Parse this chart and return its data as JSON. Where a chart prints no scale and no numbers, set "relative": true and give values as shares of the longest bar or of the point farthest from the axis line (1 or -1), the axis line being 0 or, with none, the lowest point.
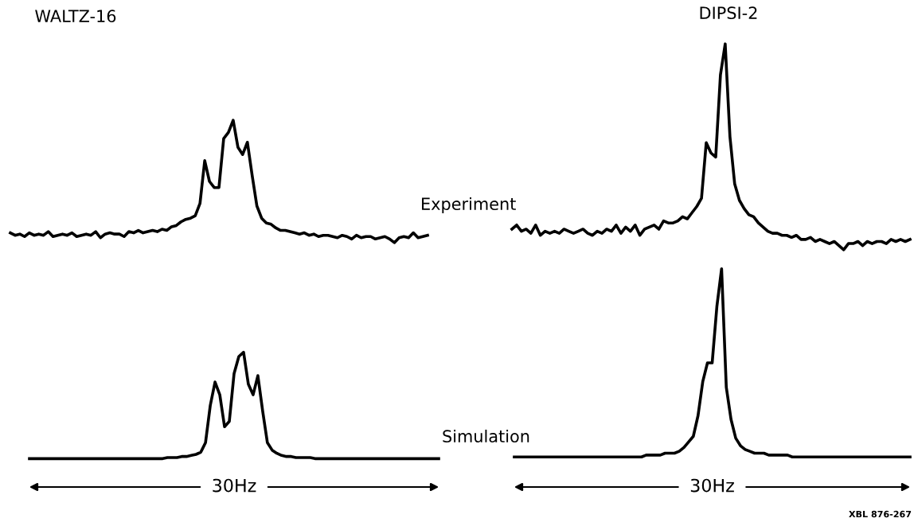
{
  "chart_data": [
    {
      "type": "line",
      "title": "WALTZ-16",
      "relative": true,
      "line_style": "solid",
      "categories": [
        null,
        null,
        null,
        null,
        null,
        null,
        null,
        null,
        null,
        null,
        null,
        null,
        null,
        null,
        null,
        null,
        null,
        null,
        null,
        null,
        null,
        null,
        null,
        null,
        null,
        null,
        null,
        null,
        null,
        null,
        null,
        null,
        null,
        null,
        null,
        null,
        null,
        null,
        null,
        null,
        null,
        null,
        null,
        null,
        null,
        null,
        null,
        null,
        null,
        null,
        null,
        null,
        null,
        null,
        null,
        null,
        null,
        null,
        null,
        null,
        null,
        null,
        null,
        null,
        null,
        null,
        null,
        null,
        null,
        null,
        null,
        null,
        null,
        null,
        null,
        null,
        null,
        null,
        null,
        null,
        null,
        null,
        null,
        null,
        null,
        null,
        null,
        null,
        null
      ],
      "series": [
        {
          "color": "#000000",
          "values": [
            0.08,
            0.06,
            0.07,
            0.05,
            0.08,
            0.06,
            0.07,
            0.06,
            0.09,
            0.05,
            0.06,
            0.07,
            0.06,
            0.08,
            0.05,
            0.06,
            0.07,
            0.06,
            0.09,
            0.04,
            0.07,
            0.08,
            0.07,
            0.07,
            0.05,
            0.09,
            0.08,
            0.1,
            0.08,
            0.09,
            0.1,
            0.09,
            0.11,
            0.1,
            0.13,
            0.14,
            0.17,
            0.19,
            0.2,
            0.22,
            0.32,
            0.67,
            0.5,
            0.45,
            0.45,
            0.85,
            0.9,
            1.0,
            0.78,
            0.72,
            0.82,
            0.55,
            0.3,
            0.2,
            0.16,
            0.15,
            0.12,
            0.1,
            0.1,
            0.09,
            0.08,
            0.07,
            0.08,
            0.06,
            0.07,
            0.05,
            0.06,
            0.06,
            0.05,
            0.04,
            0.06,
            0.05,
            0.03,
            0.06,
            0.04,
            0.05,
            0.05,
            0.03,
            0.04,
            0.05,
            0.03,
            0.0,
            0.04,
            0.05,
            0.04,
            0.08,
            0.04,
            0.05,
            0.06
          ]
        }
      ]
    },
    {
      "type": "line",
      "title": "DIPSI-2",
      "relative": true,
      "line_style": "solid",
      "annotations": [
        "Experiment"
      ],
      "categories": [
        null,
        null,
        null,
        null,
        null,
        null,
        null,
        null,
        null,
        null,
        null,
        null,
        null,
        null,
        null,
        null,
        null,
        null,
        null,
        null,
        null,
        null,
        null,
        null,
        null,
        null,
        null,
        null,
        null,
        null,
        null,
        null,
        null,
        null,
        null,
        null,
        null,
        null,
        null,
        null,
        null,
        null,
        null,
        null,
        null,
        null,
        null,
        null,
        null,
        null,
        null,
        null,
        null,
        null,
        null,
        null,
        null,
        null,
        null,
        null,
        null,
        null,
        null,
        null,
        null,
        null,
        null,
        null,
        null,
        null,
        null,
        null,
        null,
        null,
        null,
        null,
        null,
        null,
        null,
        null,
        null,
        null,
        null,
        null,
        null
      ],
      "series": [
        {
          "color": "#000000",
          "values": [
            0.1,
            0.12,
            0.09,
            0.1,
            0.08,
            0.12,
            0.07,
            0.09,
            0.08,
            0.09,
            0.08,
            0.1,
            0.09,
            0.08,
            0.09,
            0.1,
            0.08,
            0.07,
            0.09,
            0.08,
            0.1,
            0.09,
            0.12,
            0.08,
            0.11,
            0.09,
            0.12,
            0.07,
            0.1,
            0.11,
            0.12,
            0.1,
            0.14,
            0.13,
            0.13,
            0.14,
            0.16,
            0.15,
            0.18,
            0.21,
            0.25,
            0.52,
            0.47,
            0.45,
            0.85,
            1.0,
            0.55,
            0.32,
            0.24,
            0.2,
            0.17,
            0.16,
            0.13,
            0.11,
            0.09,
            0.08,
            0.08,
            0.07,
            0.07,
            0.06,
            0.07,
            0.05,
            0.05,
            0.06,
            0.04,
            0.05,
            0.04,
            0.03,
            0.04,
            0.02,
            0.0,
            0.03,
            0.03,
            0.04,
            0.02,
            0.04,
            0.03,
            0.04,
            0.04,
            0.03,
            0.05,
            0.04,
            0.05,
            0.04,
            0.05
          ]
        }
      ]
    },
    {
      "type": "line",
      "xlabel": "30Hz",
      "relative": true,
      "line_style": "solid",
      "categories": [
        null,
        null,
        null,
        null,
        null,
        null,
        null,
        null,
        null,
        null,
        null,
        null,
        null,
        null,
        null,
        null,
        null,
        null,
        null,
        null,
        null,
        null,
        null,
        null,
        null,
        null,
        null,
        null,
        null,
        null,
        null,
        null,
        null,
        null,
        null,
        null,
        null,
        null,
        null,
        null,
        null,
        null,
        null,
        null,
        null,
        null,
        null,
        null,
        null,
        null,
        null,
        null,
        null,
        null,
        null,
        null,
        null,
        null,
        null,
        null,
        null,
        null,
        null,
        null,
        null,
        null,
        null,
        null,
        null,
        null,
        null,
        null,
        null,
        null,
        null,
        null,
        null,
        null,
        null,
        null,
        null,
        null,
        null,
        null,
        null,
        null,
        null
      ],
      "series": [
        {
          "color": "#000000",
          "values": [
            0.0,
            0.0,
            0.0,
            0.0,
            0.0,
            0.0,
            0.0,
            0.0,
            0.0,
            0.0,
            0.0,
            0.0,
            0.0,
            0.0,
            0.0,
            0.0,
            0.0,
            0.0,
            0.0,
            0.0,
            0.0,
            0.0,
            0.0,
            0.0,
            0.0,
            0.0,
            0.0,
            0.0,
            0.0,
            0.01,
            0.01,
            0.01,
            0.02,
            0.02,
            0.03,
            0.04,
            0.06,
            0.15,
            0.5,
            0.72,
            0.6,
            0.3,
            0.35,
            0.8,
            0.96,
            1.0,
            0.7,
            0.6,
            0.78,
            0.45,
            0.15,
            0.08,
            0.05,
            0.03,
            0.02,
            0.02,
            0.01,
            0.01,
            0.01,
            0.01,
            0.0,
            0.0,
            0.0,
            0.0,
            0.0,
            0.0,
            0.0,
            0.0,
            0.0,
            0.0,
            0.0,
            0.0,
            0.0,
            0.0,
            0.0,
            0.0,
            0.0,
            0.0,
            0.0,
            0.0,
            0.0,
            0.0,
            0.0,
            0.0,
            0.0,
            0.0,
            0.0
          ]
        }
      ]
    },
    {
      "type": "line",
      "xlabel": "30Hz",
      "relative": true,
      "line_style": "solid",
      "annotations": [
        "Simulation",
        "XBL 876-267"
      ],
      "categories": [
        null,
        null,
        null,
        null,
        null,
        null,
        null,
        null,
        null,
        null,
        null,
        null,
        null,
        null,
        null,
        null,
        null,
        null,
        null,
        null,
        null,
        null,
        null,
        null,
        null,
        null,
        null,
        null,
        null,
        null,
        null,
        null,
        null,
        null,
        null,
        null,
        null,
        null,
        null,
        null,
        null,
        null,
        null,
        null,
        null,
        null,
        null,
        null,
        null,
        null,
        null,
        null,
        null,
        null,
        null,
        null,
        null,
        null,
        null,
        null,
        null,
        null,
        null,
        null,
        null,
        null,
        null,
        null,
        null,
        null,
        null,
        null,
        null,
        null,
        null,
        null,
        null,
        null,
        null,
        null,
        null,
        null,
        null,
        null,
        null
      ],
      "series": [
        {
          "color": "#000000",
          "values": [
            0.0,
            0.0,
            0.0,
            0.0,
            0.0,
            0.0,
            0.0,
            0.0,
            0.0,
            0.0,
            0.0,
            0.0,
            0.0,
            0.0,
            0.0,
            0.0,
            0.0,
            0.0,
            0.0,
            0.0,
            0.0,
            0.0,
            0.0,
            0.0,
            0.0,
            0.0,
            0.0,
            0.0,
            0.01,
            0.01,
            0.01,
            0.01,
            0.02,
            0.02,
            0.02,
            0.03,
            0.05,
            0.08,
            0.11,
            0.22,
            0.4,
            0.5,
            0.5,
            0.8,
            1.0,
            0.37,
            0.2,
            0.1,
            0.06,
            0.04,
            0.03,
            0.02,
            0.02,
            0.02,
            0.01,
            0.01,
            0.01,
            0.01,
            0.01,
            0.0,
            0.0,
            0.0,
            0.0,
            0.0,
            0.0,
            0.0,
            0.0,
            0.0,
            0.0,
            0.0,
            0.0,
            0.0,
            0.0,
            0.0,
            0.0,
            0.0,
            0.0,
            0.0,
            0.0,
            0.0,
            0.0,
            0.0,
            0.0,
            0.0,
            0.0
          ]
        }
      ]
    }
  ]
}
